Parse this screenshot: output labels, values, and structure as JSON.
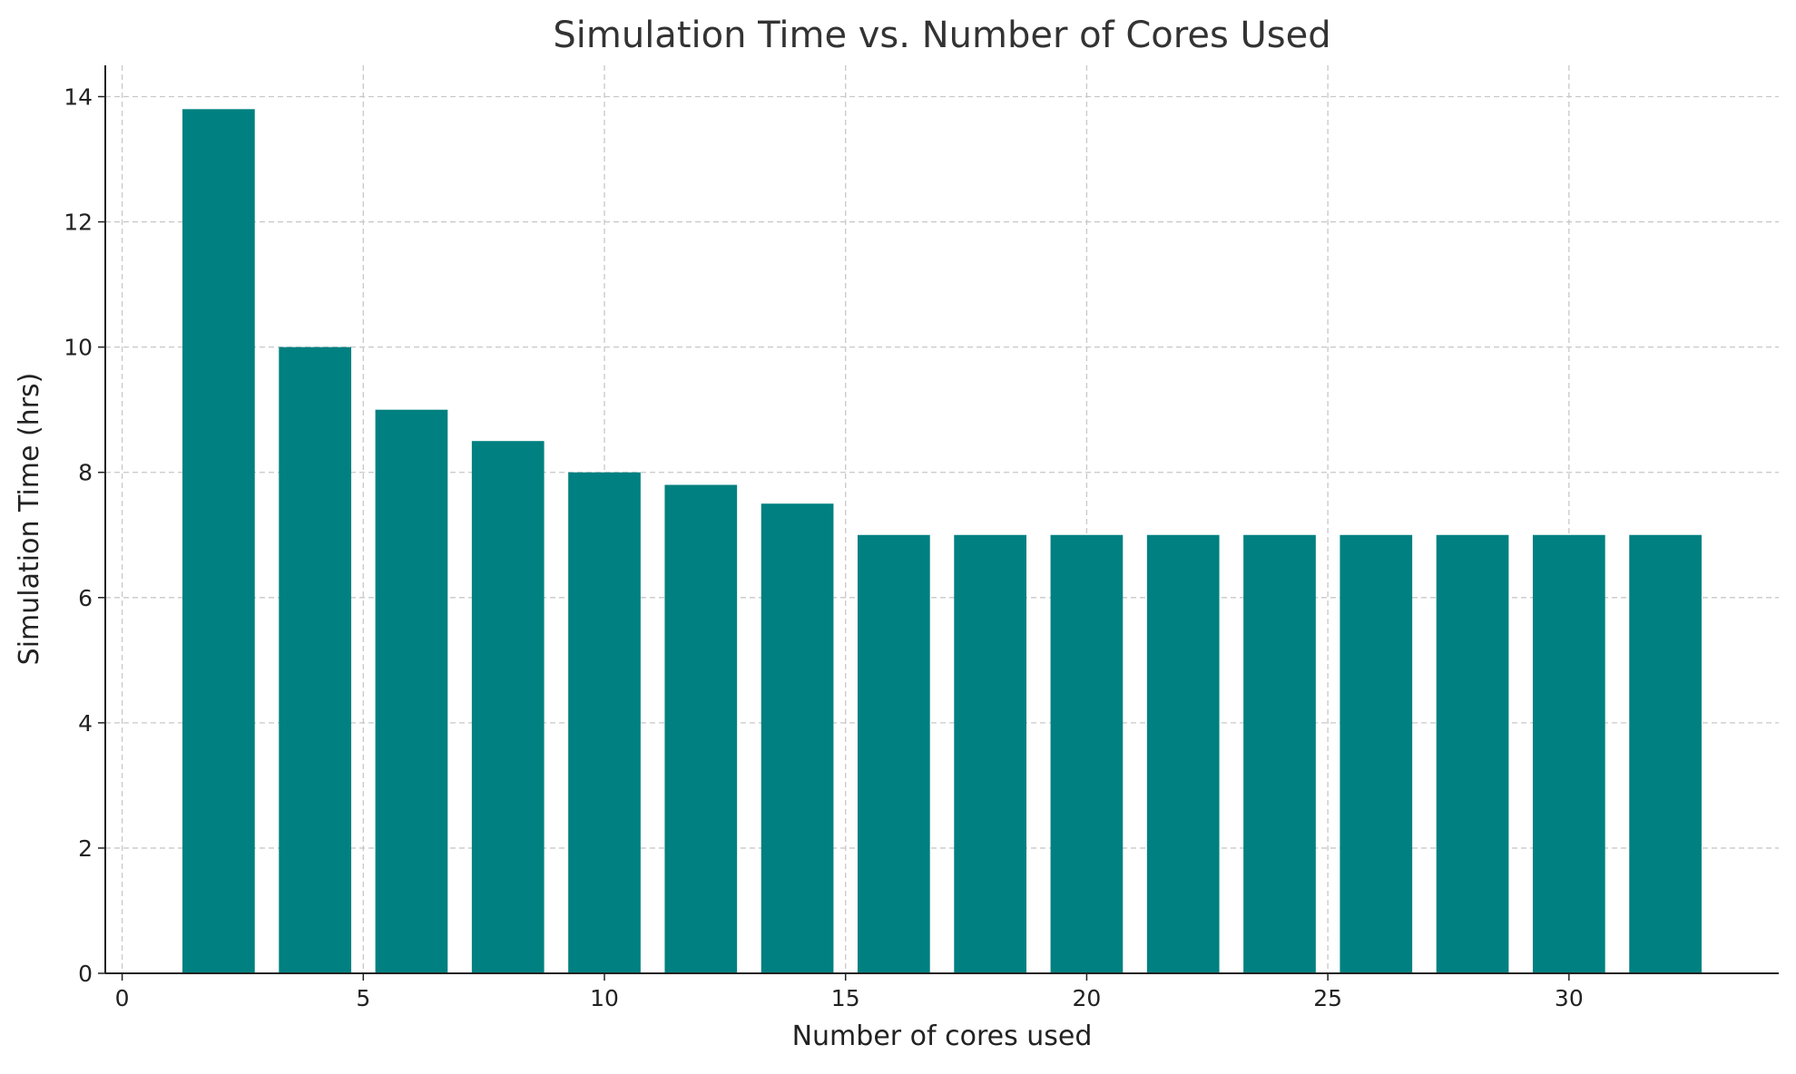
{
  "chart_data": {
    "type": "bar",
    "title": "Simulation Time vs. Number of Cores Used",
    "xlabel": "Number of cores used",
    "ylabel": "Simulation Time (hrs)",
    "x": [
      2,
      4,
      6,
      8,
      10,
      12,
      14,
      16,
      18,
      20,
      22,
      24,
      26,
      28,
      30,
      32
    ],
    "values": [
      13.8,
      10,
      9,
      8.5,
      8,
      7.8,
      7.5,
      7,
      7,
      7,
      7,
      7,
      7,
      7,
      7,
      7
    ],
    "bar_width": 1.5,
    "xlim": [
      -0.35,
      34.35
    ],
    "ylim": [
      0,
      14.5
    ],
    "xticks": [
      0,
      5,
      10,
      15,
      20,
      25,
      30
    ],
    "yticks": [
      0,
      2,
      4,
      6,
      8,
      10,
      12,
      14
    ],
    "grid": true,
    "bar_color": "#008080"
  }
}
